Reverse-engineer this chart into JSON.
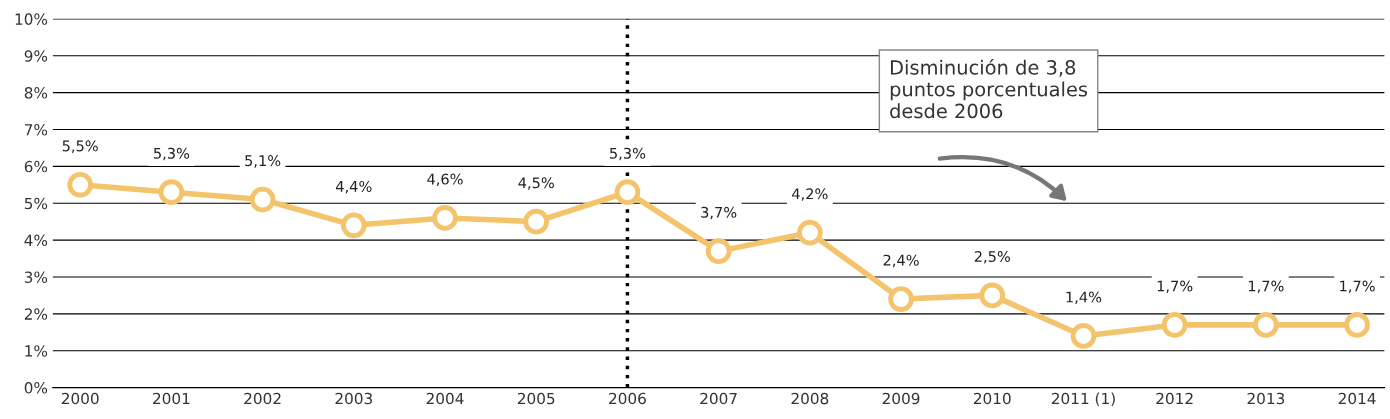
{
  "chart_data": {
    "type": "line",
    "categories": [
      "2000",
      "2001",
      "2002",
      "2003",
      "2004",
      "2005",
      "2006",
      "2007",
      "2008",
      "2009",
      "2010",
      "2011 (1)",
      "2012",
      "2013",
      "2014"
    ],
    "series": [
      {
        "color": "#f4c46c",
        "values": [
          5.5,
          5.3,
          5.1,
          4.4,
          4.6,
          4.5,
          5.3,
          3.7,
          4.2,
          2.4,
          2.5,
          1.4,
          1.7,
          1.7,
          1.7
        ],
        "value_labels": [
          "5,5%",
          "5,3%",
          "5,1%",
          "4,4%",
          "4,6%",
          "4,5%",
          "5,3%",
          "3,7%",
          "4,2%",
          "2,4%",
          "2,5%",
          "1,4%",
          "1,7%",
          "1,7%",
          "1,7%"
        ]
      }
    ],
    "ylim": [
      0,
      10
    ],
    "yticks": [
      {
        "value": 0,
        "label": "0%"
      },
      {
        "value": 1,
        "label": "1%"
      },
      {
        "value": 2,
        "label": "2%"
      },
      {
        "value": 3,
        "label": "3%"
      },
      {
        "value": 4,
        "label": "4%"
      },
      {
        "value": 5,
        "label": "5%"
      },
      {
        "value": 6,
        "label": "6%"
      },
      {
        "value": 7,
        "label": "7%"
      },
      {
        "value": 8,
        "label": "8%"
      },
      {
        "value": 9,
        "label": "9%"
      },
      {
        "value": 10,
        "label": "10%"
      }
    ],
    "grid": "y",
    "marker": "circle",
    "line_style": "solid",
    "ref_lines": [
      {
        "axis": "x",
        "value": "2006",
        "color": "#000000",
        "line_style": "dotted"
      }
    ],
    "annotations": [
      "Disminución de 3,8\npuntos porcentuales\ndesde 2006"
    ]
  }
}
